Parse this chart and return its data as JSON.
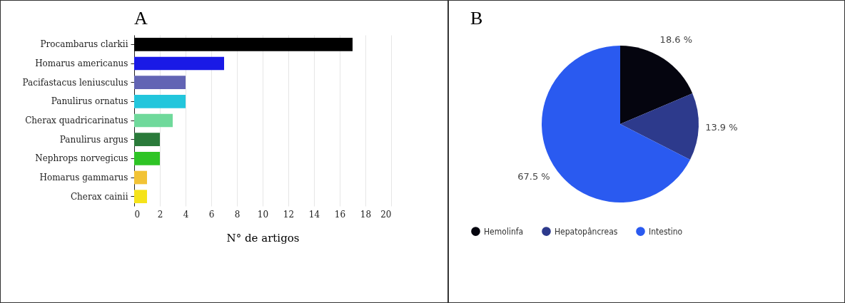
{
  "chart_data": [
    {
      "type": "bar",
      "title": "A",
      "orientation": "horizontal",
      "xlabel": "N° de artigos",
      "categories": [
        "Procambarus clarkii",
        "Homarus americanus",
        "Pacifastacus leniusculus",
        "Panulirus ornatus",
        "Cherax quadricarinatus",
        "Panulirus argus",
        "Nephrops norvegicus",
        "Homarus gammarus",
        "Cherax cainii"
      ],
      "values": [
        17,
        7,
        4,
        4,
        3,
        2,
        2,
        1,
        1
      ],
      "colors": [
        "#000000",
        "#1a1ae6",
        "#6264b4",
        "#22c6dc",
        "#6fd99b",
        "#2a7a3a",
        "#2ec425",
        "#f2c335",
        "#f5e31a"
      ],
      "xlim": [
        0,
        20
      ],
      "xticks": [
        0,
        2,
        4,
        6,
        8,
        10,
        12,
        14,
        16,
        18,
        20
      ],
      "grid": "x"
    },
    {
      "type": "pie",
      "title": "B",
      "categories": [
        "Hemolinfa",
        "Hepatopâncreas",
        "Intestino"
      ],
      "values": [
        18.6,
        13.9,
        67.5
      ],
      "value_labels": [
        "18.6 %",
        "13.9 %",
        "67.5 %"
      ],
      "colors": [
        "#05050f",
        "#2d3a8c",
        "#2a5af0"
      ],
      "legend": "bottom"
    }
  ]
}
